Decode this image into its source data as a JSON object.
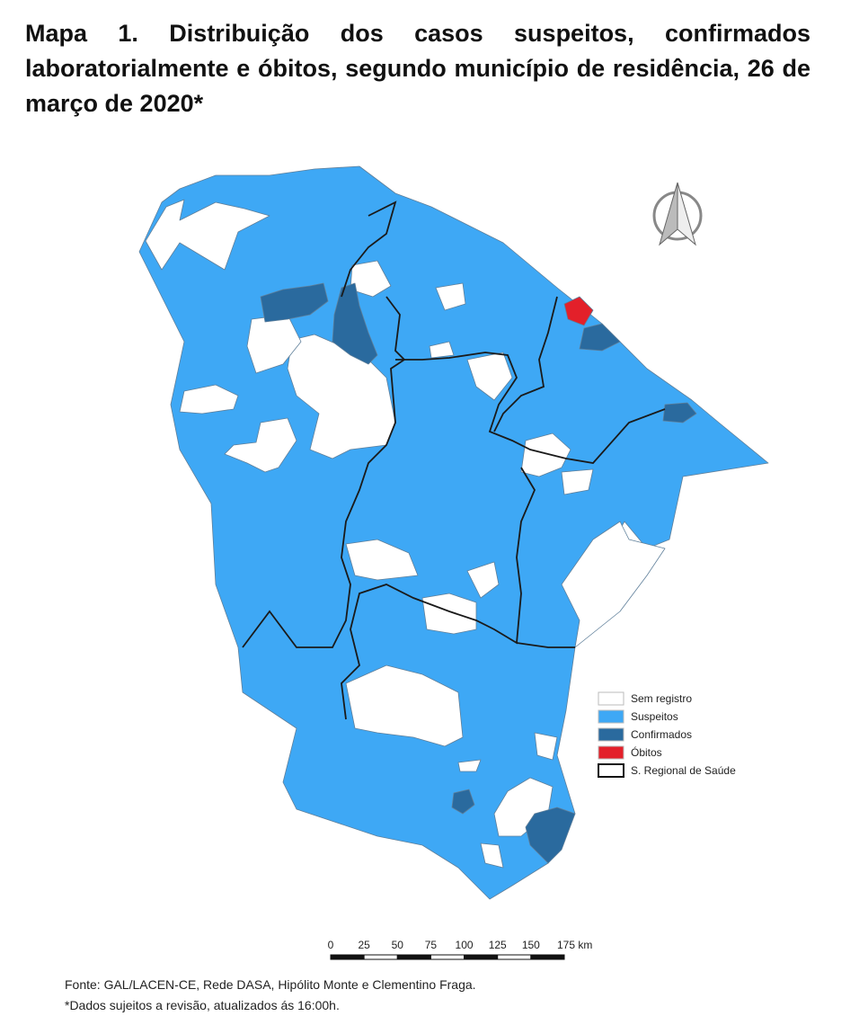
{
  "header": {
    "title": "Mapa 1. Distribuição dos casos suspeitos, confirmados laboratorialmente e óbitos, segundo município de residência, 26 de março de 2020*"
  },
  "legend": [
    {
      "label": "Sem registro",
      "color": "#ffffff"
    },
    {
      "label": "Suspeitos",
      "color": "#3ea8f5"
    },
    {
      "label": "Confirmados",
      "color": "#2a6a9e"
    },
    {
      "label": "Óbitos",
      "color": "#e3202a"
    },
    {
      "label": "S. Regional de Saúde",
      "color": "#ffffff"
    }
  ],
  "scale": {
    "labels": [
      "0",
      "25",
      "50",
      "75",
      "100",
      "125",
      "150",
      "175 km"
    ]
  },
  "footer": {
    "source": "Fonte: GAL/LACEN-CE, Rede DASA, Hipólito Monte e Clementino Fraga.",
    "note": "*Dados sujeitos a revisão,  atualizados ás 16:00h."
  }
}
